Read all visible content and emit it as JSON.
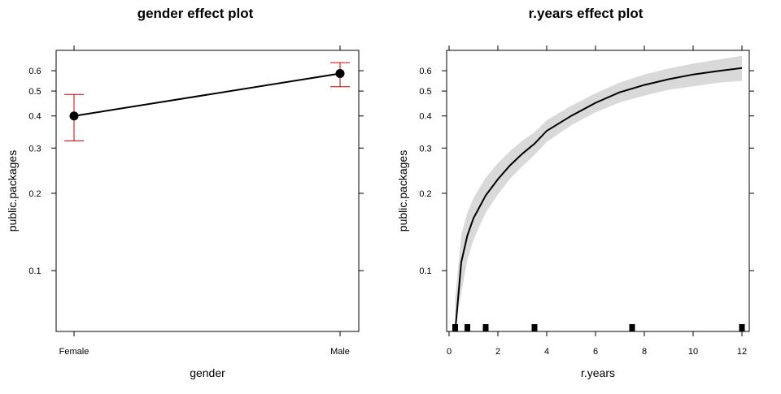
{
  "chart_data": [
    {
      "type": "line",
      "title": "gender effect plot",
      "xlabel": "gender",
      "ylabel": "public.packages",
      "x_scale": "categorical",
      "y_scale": "log",
      "ylim": [
        0.058,
        0.72
      ],
      "y_ticks": [
        0.1,
        0.2,
        0.3,
        0.4,
        0.5,
        0.6
      ],
      "y_tick_labels": [
        "0.1",
        "0.2",
        "0.3",
        "0.4",
        "0.5",
        "0.6"
      ],
      "categories": [
        "Female",
        "Male"
      ],
      "series": [
        {
          "values": [
            0.4,
            0.585
          ],
          "lower": [
            0.32,
            0.52
          ],
          "upper": [
            0.485,
            0.645
          ]
        }
      ],
      "colors": {
        "line": "#000000",
        "error_bars": "#cc0000",
        "box": "#000000"
      },
      "grid": false
    },
    {
      "type": "area",
      "title": "r.years effect plot",
      "xlabel": "r.years",
      "ylabel": "public.packages",
      "y_scale": "log",
      "xlim": [
        -0.1,
        12.3
      ],
      "ylim": [
        0.058,
        0.72
      ],
      "x_ticks": [
        0,
        2,
        4,
        6,
        8,
        10,
        12
      ],
      "x_tick_labels": [
        "0",
        "2",
        "4",
        "6",
        "8",
        "10",
        "12"
      ],
      "y_ticks": [
        0.1,
        0.2,
        0.3,
        0.4,
        0.5,
        0.6
      ],
      "y_tick_labels": [
        "0.1",
        "0.2",
        "0.3",
        "0.4",
        "0.5",
        "0.6"
      ],
      "series": [
        {
          "x": [
            0.25,
            0.5,
            0.75,
            1,
            1.5,
            2,
            2.5,
            3,
            3.5,
            4,
            5,
            6,
            7,
            8,
            9,
            10,
            11,
            12
          ],
          "values": [
            0.058,
            0.108,
            0.137,
            0.16,
            0.196,
            0.227,
            0.257,
            0.285,
            0.312,
            0.35,
            0.4,
            0.45,
            0.495,
            0.528,
            0.556,
            0.58,
            0.598,
            0.615
          ],
          "lower": [
            0.038,
            0.082,
            0.11,
            0.132,
            0.168,
            0.198,
            0.228,
            0.255,
            0.282,
            0.317,
            0.368,
            0.413,
            0.452,
            0.48,
            0.506,
            0.522,
            0.538,
            0.548
          ],
          "upper": [
            0.078,
            0.138,
            0.168,
            0.192,
            0.23,
            0.262,
            0.292,
            0.32,
            0.346,
            0.385,
            0.438,
            0.49,
            0.54,
            0.58,
            0.612,
            0.64,
            0.662,
            0.685
          ]
        }
      ],
      "rug": [
        0.25,
        0.75,
        1.5,
        3.5,
        7.5,
        12
      ],
      "colors": {
        "line": "#000000",
        "band": "#d9d9d9",
        "rug": "#000000",
        "box": "#000000"
      },
      "grid": false
    }
  ]
}
